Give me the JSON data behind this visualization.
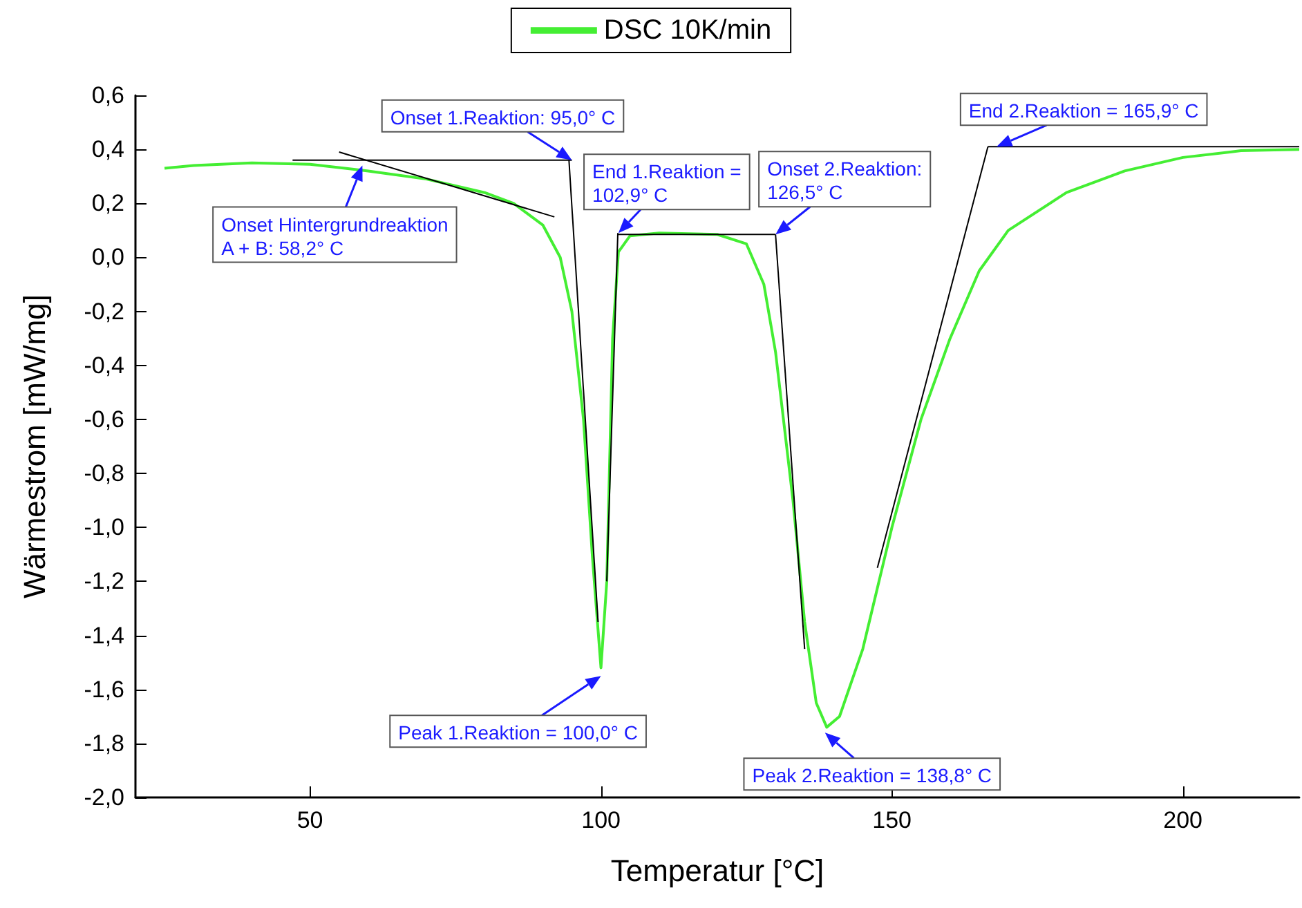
{
  "chart_data": {
    "type": "line",
    "xlabel": "Temperatur [°C]",
    "ylabel": "Wärmestrom [mW/mg]",
    "xlim": [
      20,
      220
    ],
    "ylim": [
      -2.0,
      0.6
    ],
    "xticks": [
      50,
      100,
      150,
      200
    ],
    "yticks": [
      {
        "value": 0.6,
        "label": "0,6"
      },
      {
        "value": 0.4,
        "label": "0,4"
      },
      {
        "value": 0.2,
        "label": "0,2"
      },
      {
        "value": 0.0,
        "label": "0,0"
      },
      {
        "value": -0.2,
        "label": "-0,2"
      },
      {
        "value": -0.4,
        "label": "-0,4"
      },
      {
        "value": -0.6,
        "label": "-0,6"
      },
      {
        "value": -0.8,
        "label": "-0,8"
      },
      {
        "value": -1.0,
        "label": "-1,0"
      },
      {
        "value": -1.2,
        "label": "-1,2"
      },
      {
        "value": -1.4,
        "label": "-1,4"
      },
      {
        "value": -1.6,
        "label": "-1,6"
      },
      {
        "value": -1.8,
        "label": "-1,8"
      },
      {
        "value": -2.0,
        "label": "-2,0"
      }
    ],
    "legend": "top",
    "marker": "none",
    "line_style": "solid",
    "series": [
      {
        "name": "DSC 10K/min",
        "color": "#44ee33",
        "x": [
          25,
          30,
          40,
          50,
          60,
          70,
          80,
          85,
          90,
          93,
          95,
          97,
          98.5,
          100,
          101,
          102,
          103,
          105,
          110,
          120,
          125,
          128,
          130,
          133,
          135,
          137,
          138.8,
          141,
          145,
          150,
          155,
          160,
          165,
          170,
          180,
          190,
          200,
          210,
          220
        ],
        "values": [
          0.33,
          0.34,
          0.35,
          0.345,
          0.32,
          0.29,
          0.24,
          0.2,
          0.12,
          0.0,
          -0.2,
          -0.6,
          -1.1,
          -1.52,
          -1.2,
          -0.3,
          0.02,
          0.08,
          0.09,
          0.085,
          0.05,
          -0.1,
          -0.35,
          -0.9,
          -1.35,
          -1.65,
          -1.74,
          -1.7,
          -1.45,
          -1.0,
          -0.6,
          -0.3,
          -0.05,
          0.1,
          0.24,
          0.32,
          0.37,
          0.395,
          0.4
        ]
      },
      {
        "color": "#000000",
        "x": [
          47,
          95
        ],
        "values": [
          0.36,
          0.36
        ]
      },
      {
        "color": "#000000",
        "x": [
          55,
          92
        ],
        "values": [
          0.39,
          0.15
        ]
      },
      {
        "color": "#000000",
        "x": [
          94.5,
          99.5
        ],
        "values": [
          0.36,
          -1.35
        ]
      },
      {
        "color": "#000000",
        "x": [
          101,
          102.9
        ],
        "values": [
          -1.2,
          0.09
        ]
      },
      {
        "color": "#000000",
        "x": [
          102.9,
          130
        ],
        "values": [
          0.085,
          0.085
        ]
      },
      {
        "color": "#000000",
        "x": [
          130,
          135
        ],
        "values": [
          0.085,
          -1.45
        ]
      },
      {
        "color": "#000000",
        "x": [
          147.5,
          166.5
        ],
        "values": [
          -1.15,
          0.41
        ]
      },
      {
        "color": "#000000",
        "x": [
          166.5,
          220
        ],
        "values": [
          0.41,
          0.41
        ]
      }
    ],
    "annotations": [
      {
        "text": "Onset 1.Reaktion: 95,0° C",
        "x": 95,
        "y": 0.36
      },
      {
        "text": "End 1.Reaktion = 102,9° C",
        "x": 103,
        "y": 0.09
      },
      {
        "text": "Onset 2.Reaktion: 126,5° C",
        "x": 130,
        "y": 0.085
      },
      {
        "text": "End 2.Reaktion = 165,9° C",
        "x": 168,
        "y": 0.41
      },
      {
        "text": "Onset Hintergrundreaktion\nA + B: 58,2° C",
        "x": 59,
        "y": 0.34
      },
      {
        "text": "Peak 1.Reaktion = 100,0° C",
        "x": 100,
        "y": -1.55
      },
      {
        "text": "Peak 2.Reaktion = 138,8° C",
        "x": 138.5,
        "y": -1.76
      }
    ]
  }
}
